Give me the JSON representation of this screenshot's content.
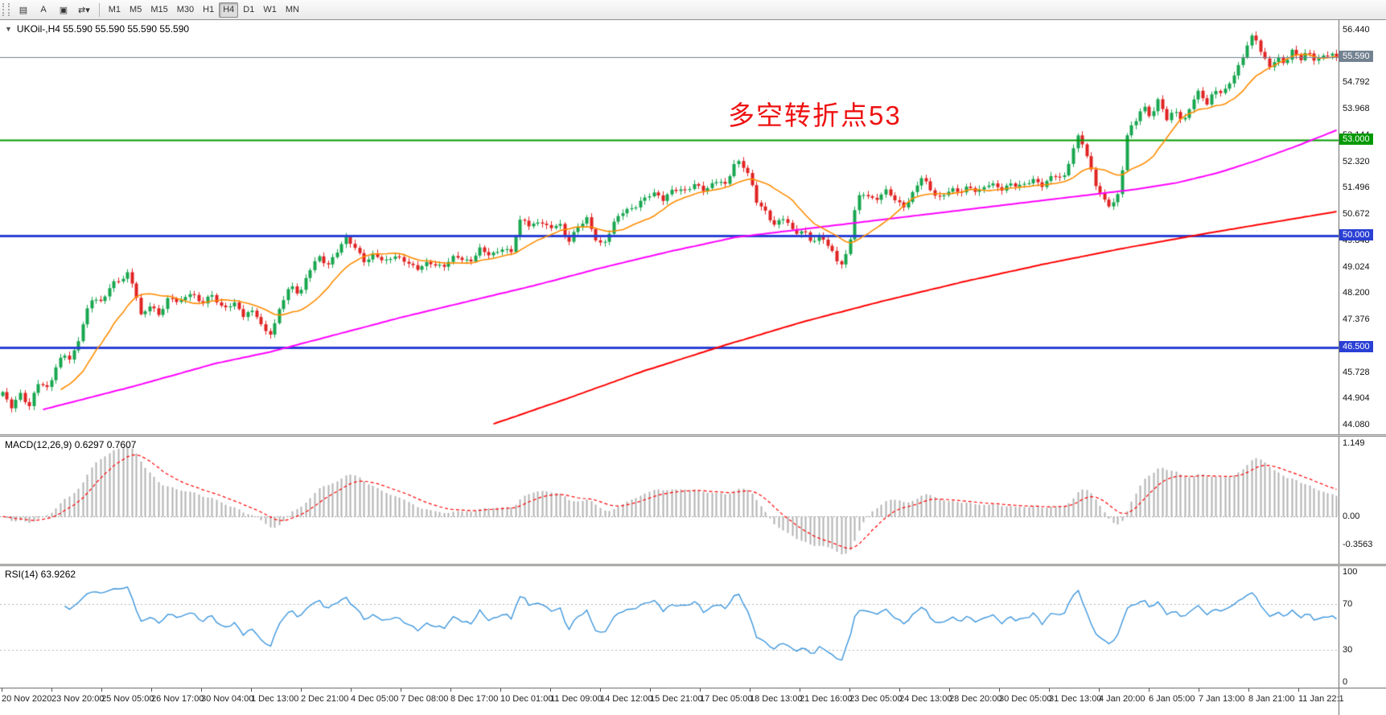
{
  "toolbar": {
    "icons": [
      {
        "name": "quotes-grid",
        "glyph": "▤"
      },
      {
        "name": "cursor-mode",
        "glyph": "A"
      },
      {
        "name": "chart-window",
        "glyph": "▣"
      },
      {
        "name": "chart-shift",
        "glyph": "⇄▾"
      }
    ],
    "timeframes": [
      "M1",
      "M5",
      "M15",
      "M30",
      "H1",
      "H4",
      "D1",
      "W1",
      "MN"
    ],
    "selected": "H4"
  },
  "main": {
    "title": "UKOil-,H4 55.590 55.590 55.590 55.590",
    "collapse_arrow": "▼",
    "annotation": "多空转折点53"
  },
  "macd_panel": {
    "label": "MACD(12,26,9) 0.6297 0.7607"
  },
  "rsi_panel": {
    "label": "RSI(14) 63.9262"
  },
  "colors": {
    "candle_up": "#17a64f",
    "candle_down": "#e02222",
    "ma_fast": "#ff8c00",
    "ma_mid": "#ff00ff",
    "ma_slow": "#ff0000",
    "macd_hist": "#b3b3b3",
    "macd_signal": "#ff0000",
    "rsi_line": "#3d96dc",
    "price_marker": "#738291",
    "annotation": "#ee1111",
    "hline_blue": "#2a3fd4",
    "hline_green": "#009900"
  },
  "chart_data": {
    "type": "candlestick",
    "symbol": "UKOil-",
    "timeframe": "H4",
    "current_price": 55.59,
    "candle_count": 300,
    "price_range": [
      44.08,
      56.44
    ],
    "price_ticks": [
      "56.440",
      "55.616",
      "54.792",
      "53.968",
      "53.144",
      "52.320",
      "51.496",
      "50.672",
      "49.848",
      "49.024",
      "48.200",
      "47.376",
      "46.552",
      "45.728",
      "44.904",
      "44.080"
    ],
    "axis_markers": [
      {
        "label": "55.590",
        "value": 55.59,
        "color": "#738291"
      },
      {
        "label": "53.000",
        "value": 53.0,
        "color": "#009900"
      },
      {
        "label": "50.000",
        "value": 50.0,
        "color": "#2a3fd4"
      },
      {
        "label": "46.500",
        "value": 46.5,
        "color": "#2a3fd4"
      }
    ],
    "hlines": [
      {
        "value": 53.0,
        "color": "#009900",
        "width": 2
      },
      {
        "value": 50.0,
        "color": "#2a3fd4",
        "width": 3
      },
      {
        "value": 46.5,
        "color": "#2a3fd4",
        "width": 3
      }
    ],
    "price_path": [
      [
        0.0,
        45.1
      ],
      [
        0.006,
        44.55
      ],
      [
        0.013,
        45.05
      ],
      [
        0.02,
        44.7
      ],
      [
        0.027,
        45.4
      ],
      [
        0.034,
        45.15
      ],
      [
        0.04,
        45.9
      ],
      [
        0.046,
        46.35
      ],
      [
        0.051,
        46.1
      ],
      [
        0.056,
        46.55
      ],
      [
        0.062,
        47.5
      ],
      [
        0.068,
        48.15
      ],
      [
        0.074,
        47.9
      ],
      [
        0.081,
        48.4
      ],
      [
        0.088,
        48.6
      ],
      [
        0.094,
        48.85
      ],
      [
        0.099,
        48.35
      ],
      [
        0.104,
        47.4
      ],
      [
        0.11,
        47.8
      ],
      [
        0.117,
        47.55
      ],
      [
        0.125,
        48.1
      ],
      [
        0.133,
        47.85
      ],
      [
        0.141,
        48.25
      ],
      [
        0.149,
        47.9
      ],
      [
        0.157,
        48.1
      ],
      [
        0.165,
        47.7
      ],
      [
        0.173,
        47.95
      ],
      [
        0.181,
        47.45
      ],
      [
        0.189,
        47.65
      ],
      [
        0.196,
        47.05
      ],
      [
        0.202,
        46.95
      ],
      [
        0.209,
        47.85
      ],
      [
        0.216,
        48.45
      ],
      [
        0.223,
        48.2
      ],
      [
        0.23,
        48.9
      ],
      [
        0.237,
        49.3
      ],
      [
        0.244,
        49.1
      ],
      [
        0.251,
        49.55
      ],
      [
        0.258,
        49.9
      ],
      [
        0.265,
        49.55
      ],
      [
        0.272,
        49.2
      ],
      [
        0.279,
        49.45
      ],
      [
        0.286,
        49.1
      ],
      [
        0.293,
        49.4
      ],
      [
        0.301,
        49.25
      ],
      [
        0.31,
        48.9
      ],
      [
        0.32,
        49.2
      ],
      [
        0.33,
        49.0
      ],
      [
        0.34,
        49.35
      ],
      [
        0.35,
        49.2
      ],
      [
        0.358,
        49.55
      ],
      [
        0.366,
        49.35
      ],
      [
        0.374,
        49.65
      ],
      [
        0.381,
        49.45
      ],
      [
        0.389,
        50.55
      ],
      [
        0.396,
        50.3
      ],
      [
        0.403,
        50.5
      ],
      [
        0.41,
        50.15
      ],
      [
        0.417,
        50.4
      ],
      [
        0.424,
        49.85
      ],
      [
        0.431,
        50.25
      ],
      [
        0.438,
        50.5
      ],
      [
        0.444,
        49.95
      ],
      [
        0.45,
        49.7
      ],
      [
        0.457,
        50.3
      ],
      [
        0.464,
        50.7
      ],
      [
        0.471,
        50.85
      ],
      [
        0.479,
        51.1
      ],
      [
        0.487,
        51.3
      ],
      [
        0.495,
        51.15
      ],
      [
        0.503,
        51.5
      ],
      [
        0.511,
        51.35
      ],
      [
        0.519,
        51.6
      ],
      [
        0.527,
        51.45
      ],
      [
        0.535,
        51.7
      ],
      [
        0.542,
        51.55
      ],
      [
        0.548,
        52.25
      ],
      [
        0.553,
        52.35
      ],
      [
        0.559,
        51.9
      ],
      [
        0.565,
        51.05
      ],
      [
        0.572,
        50.75
      ],
      [
        0.579,
        50.35
      ],
      [
        0.586,
        50.55
      ],
      [
        0.593,
        50.05
      ],
      [
        0.6,
        50.2
      ],
      [
        0.607,
        49.8
      ],
      [
        0.614,
        49.95
      ],
      [
        0.621,
        49.55
      ],
      [
        0.628,
        49.1
      ],
      [
        0.634,
        49.5
      ],
      [
        0.64,
        51.1
      ],
      [
        0.647,
        51.35
      ],
      [
        0.654,
        51.1
      ],
      [
        0.661,
        51.4
      ],
      [
        0.668,
        51.15
      ],
      [
        0.675,
        50.9
      ],
      [
        0.682,
        51.3
      ],
      [
        0.689,
        51.8
      ],
      [
        0.696,
        51.4
      ],
      [
        0.703,
        51.2
      ],
      [
        0.71,
        51.45
      ],
      [
        0.717,
        51.3
      ],
      [
        0.724,
        51.55
      ],
      [
        0.732,
        51.4
      ],
      [
        0.74,
        51.6
      ],
      [
        0.748,
        51.45
      ],
      [
        0.756,
        51.65
      ],
      [
        0.764,
        51.5
      ],
      [
        0.772,
        51.75
      ],
      [
        0.78,
        51.6
      ],
      [
        0.788,
        51.9
      ],
      [
        0.795,
        51.7
      ],
      [
        0.801,
        52.55
      ],
      [
        0.807,
        53.25
      ],
      [
        0.813,
        52.4
      ],
      [
        0.819,
        51.6
      ],
      [
        0.825,
        51.15
      ],
      [
        0.831,
        50.95
      ],
      [
        0.837,
        51.3
      ],
      [
        0.843,
        53.15
      ],
      [
        0.849,
        53.6
      ],
      [
        0.855,
        54.1
      ],
      [
        0.861,
        53.7
      ],
      [
        0.867,
        54.25
      ],
      [
        0.873,
        53.6
      ],
      [
        0.879,
        54.0
      ],
      [
        0.885,
        53.5
      ],
      [
        0.891,
        54.1
      ],
      [
        0.897,
        54.5
      ],
      [
        0.903,
        54.15
      ],
      [
        0.909,
        54.6
      ],
      [
        0.915,
        54.4
      ],
      [
        0.921,
        54.85
      ],
      [
        0.927,
        55.35
      ],
      [
        0.933,
        56.0
      ],
      [
        0.938,
        56.3
      ],
      [
        0.943,
        55.75
      ],
      [
        0.949,
        55.25
      ],
      [
        0.955,
        55.6
      ],
      [
        0.961,
        55.4
      ],
      [
        0.967,
        55.75
      ],
      [
        0.973,
        55.5
      ],
      [
        0.979,
        55.8
      ],
      [
        0.985,
        55.45
      ],
      [
        0.991,
        55.65
      ],
      [
        1.0,
        55.59
      ]
    ],
    "ma_fast_period": 14,
    "ma_mid_path": [
      [
        0.03,
        44.55
      ],
      [
        0.1,
        45.3
      ],
      [
        0.16,
        46.0
      ],
      [
        0.2,
        46.35
      ],
      [
        0.25,
        46.9
      ],
      [
        0.3,
        47.45
      ],
      [
        0.35,
        47.95
      ],
      [
        0.4,
        48.45
      ],
      [
        0.45,
        49.0
      ],
      [
        0.5,
        49.5
      ],
      [
        0.55,
        49.95
      ],
      [
        0.6,
        50.2
      ],
      [
        0.65,
        50.45
      ],
      [
        0.7,
        50.7
      ],
      [
        0.75,
        50.95
      ],
      [
        0.8,
        51.2
      ],
      [
        0.85,
        51.45
      ],
      [
        0.88,
        51.65
      ],
      [
        0.91,
        51.95
      ],
      [
        0.94,
        52.35
      ],
      [
        0.97,
        52.8
      ],
      [
        1.0,
        53.3
      ]
    ],
    "ma_slow_path": [
      [
        0.365,
        44.06
      ],
      [
        0.42,
        44.85
      ],
      [
        0.48,
        45.75
      ],
      [
        0.54,
        46.55
      ],
      [
        0.6,
        47.3
      ],
      [
        0.66,
        47.95
      ],
      [
        0.72,
        48.55
      ],
      [
        0.78,
        49.1
      ],
      [
        0.84,
        49.6
      ],
      [
        0.9,
        50.05
      ],
      [
        0.95,
        50.4
      ],
      [
        1.0,
        50.75
      ]
    ],
    "macd": {
      "fast": 12,
      "slow": 26,
      "signal": 9,
      "value_main": 0.6297,
      "value_signal": 0.7607,
      "ticks": [
        {
          "label": "1.149",
          "value": 1.149
        },
        {
          "label": "0.00",
          "value": 0
        },
        {
          "label": "-0.3563",
          "value": -0.3563
        }
      ]
    },
    "rsi": {
      "period": 14,
      "value": 63.9262,
      "levels": [
        70,
        30
      ],
      "ticks": [
        {
          "label": "100",
          "value": 100
        },
        {
          "label": "70",
          "value": 70
        },
        {
          "label": "30",
          "value": 30
        },
        {
          "label": "0",
          "value": 0
        }
      ]
    },
    "time_labels": [
      "20 Nov 2020",
      "23 Nov 20:00",
      "25 Nov 05:00",
      "26 Nov 17:00",
      "30 Nov 04:00",
      "1 Dec 13:00",
      "2 Dec 21:00",
      "4 Dec 05:00",
      "7 Dec 08:00",
      "8 Dec 17:00",
      "10 Dec 01:00",
      "11 Dec 09:00",
      "14 Dec 12:00",
      "15 Dec 21:00",
      "17 Dec 05:00",
      "18 Dec 13:00",
      "21 Dec 16:00",
      "23 Dec 05:00",
      "24 Dec 13:00",
      "28 Dec 20:00",
      "30 Dec 05:00",
      "31 Dec 13:00",
      "4 Jan 20:00",
      "6 Jan 05:00",
      "7 Jan 13:00",
      "8 Jan 21:00",
      "11 Jan 22:1"
    ]
  }
}
